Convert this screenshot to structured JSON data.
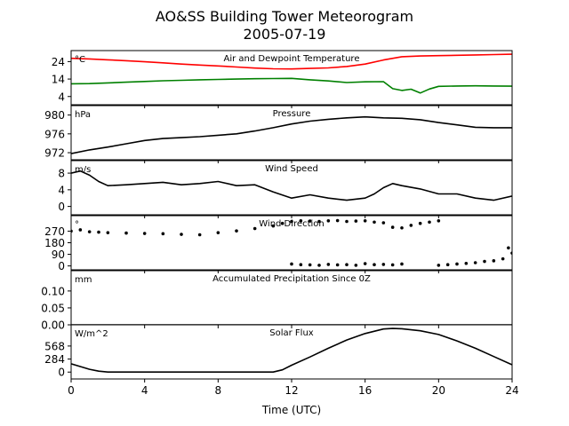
{
  "figure": {
    "title_line1": "AO&SS Building Tower Meteorogram",
    "title_line2": "2005-07-19",
    "xlabel": "Time (UTC)"
  },
  "x_axis": {
    "range": [
      0,
      24
    ],
    "ticks": [
      0,
      4,
      8,
      12,
      16,
      20,
      24
    ],
    "tick_labels": [
      "0",
      "4",
      "8",
      "12",
      "16",
      "20",
      "24"
    ]
  },
  "chart_data": [
    {
      "type": "line",
      "title": "Air and Dewpoint Temperature",
      "unit": "°C",
      "ylim": [
        -0.7,
        30.3
      ],
      "yticks": [
        4,
        14,
        24
      ],
      "ytick_labels": [
        "4",
        "14",
        "24"
      ],
      "series": [
        {
          "color": "#ff0000",
          "x": [
            0,
            1,
            2,
            3,
            4,
            5,
            6,
            7,
            8,
            9,
            10,
            11,
            12,
            13,
            14,
            15,
            16,
            17,
            18,
            19,
            20,
            21,
            22,
            23,
            24
          ],
          "y": [
            25.9,
            25.5,
            25,
            24.5,
            23.9,
            23.3,
            22.6,
            22,
            21.5,
            20.9,
            20.3,
            19.9,
            19.8,
            20.1,
            20.4,
            21.2,
            22.6,
            24.9,
            26.8,
            27.2,
            27.4,
            27.6,
            27.8,
            28,
            28.2
          ]
        },
        {
          "color": "#008000",
          "x": [
            0,
            1,
            2,
            3,
            4,
            5,
            6,
            7,
            8,
            9,
            10,
            11,
            12,
            13,
            14,
            15,
            16,
            17,
            17.5,
            18,
            18.5,
            19,
            19.5,
            20,
            21,
            22,
            23,
            24
          ],
          "y": [
            11.3,
            11.4,
            11.8,
            12.2,
            12.6,
            13,
            13.3,
            13.6,
            13.8,
            14,
            14.2,
            14.3,
            14.4,
            13.6,
            12.9,
            12,
            12.4,
            12.5,
            8.5,
            7.5,
            8.2,
            6,
            8.3,
            9.8,
            10,
            10.1,
            10,
            9.9
          ]
        }
      ]
    },
    {
      "type": "line",
      "title": "Pressure",
      "unit": "hPa",
      "ylim": [
        970.5,
        982
      ],
      "yticks": [
        972,
        976,
        980
      ],
      "ytick_labels": [
        "972",
        "976",
        "980"
      ],
      "series": [
        {
          "color": "#000000",
          "x": [
            0,
            1,
            2,
            3,
            4,
            5,
            6,
            7,
            8,
            9,
            10,
            11,
            12,
            13,
            14,
            15,
            16,
            17,
            18,
            19,
            20,
            21,
            22,
            23,
            24
          ],
          "y": [
            971.8,
            972.6,
            973.2,
            973.9,
            974.6,
            975,
            975.2,
            975.4,
            975.7,
            976,
            976.6,
            977.3,
            978.1,
            978.7,
            979.1,
            979.4,
            979.6,
            979.4,
            979.3,
            979,
            978.4,
            977.9,
            977.4,
            977.3,
            977.3
          ]
        }
      ]
    },
    {
      "type": "line",
      "title": "Wind Speed",
      "unit": "m/s",
      "ylim": [
        -2,
        11
      ],
      "yticks": [
        0,
        4,
        8
      ],
      "ytick_labels": [
        "0",
        "4",
        "8"
      ],
      "series": [
        {
          "color": "#000000",
          "x": [
            0,
            0.5,
            1,
            1.5,
            2,
            3,
            4,
            5,
            6,
            7,
            8,
            9,
            10,
            11,
            12,
            13,
            14,
            15,
            16,
            16.5,
            17,
            17.5,
            18,
            19,
            20,
            21,
            22,
            23,
            24
          ],
          "y": [
            8,
            8.5,
            7.5,
            6,
            5,
            5.2,
            5.5,
            5.8,
            5.2,
            5.5,
            6,
            5,
            5.2,
            3.5,
            2,
            2.8,
            2,
            1.5,
            2,
            3,
            4.5,
            5.5,
            5,
            4.2,
            3,
            3,
            2,
            1.5,
            2.5
          ]
        }
      ]
    },
    {
      "type": "scatter",
      "title": "Wind Direction",
      "unit": "°",
      "ylim": [
        -30,
        390
      ],
      "yticks": [
        0,
        90,
        180,
        270
      ],
      "ytick_labels": [
        "0",
        "90",
        "180",
        "270"
      ],
      "series": [
        {
          "color": "#000000",
          "x": [
            0,
            0.5,
            1,
            1.5,
            2,
            3,
            4,
            5,
            6,
            7,
            8,
            9,
            10,
            11,
            11.5,
            12,
            12.5,
            13,
            13.5,
            14,
            14.5,
            15,
            15.5,
            16,
            16.5,
            17,
            17.5,
            18,
            18.5,
            19,
            19.5,
            20
          ],
          "y": [
            270,
            280,
            265,
            262,
            258,
            255,
            252,
            250,
            245,
            242,
            258,
            272,
            290,
            310,
            330,
            345,
            350,
            348,
            345,
            350,
            352,
            345,
            348,
            350,
            340,
            335,
            300,
            295,
            315,
            330,
            340,
            350
          ]
        },
        {
          "color": "#000000",
          "x": [
            12,
            12.5,
            13,
            13.5,
            14,
            14.5,
            15,
            15.5,
            16,
            16.5,
            17,
            17.5,
            18,
            20,
            20.5,
            21,
            21.5,
            22,
            22.5,
            23,
            23.5,
            23.8,
            24
          ],
          "y": [
            15,
            10,
            8,
            5,
            12,
            8,
            10,
            5,
            18,
            10,
            12,
            8,
            15,
            5,
            10,
            15,
            20,
            25,
            35,
            40,
            55,
            140,
            100
          ]
        }
      ]
    },
    {
      "type": "line",
      "title": "Accumulated Precipitation Since 0Z",
      "unit": "mm",
      "ylim": [
        0,
        0.16
      ],
      "yticks": [
        0,
        0.05,
        0.1
      ],
      "ytick_labels": [
        "0.00",
        "0.05",
        "0.10"
      ],
      "series": [
        {
          "color": "#000000",
          "x": [
            0,
            24
          ],
          "y": [
            0,
            0
          ]
        }
      ]
    },
    {
      "type": "line",
      "title": "Solar Flux",
      "unit": "W/m^2",
      "ylim": [
        -150,
        1030
      ],
      "yticks": [
        0,
        284,
        568
      ],
      "ytick_labels": [
        "0",
        "284",
        "568"
      ],
      "series": [
        {
          "color": "#000000",
          "x": [
            0,
            0.5,
            1,
            1.5,
            2,
            4,
            6,
            8,
            10,
            11,
            11.5,
            12,
            13,
            14,
            15,
            16,
            17,
            17.5,
            18,
            19,
            20,
            21,
            22,
            23,
            24
          ],
          "y": [
            180,
            120,
            60,
            20,
            0,
            0,
            0,
            0,
            0,
            0,
            50,
            150,
            330,
            520,
            700,
            840,
            940,
            950,
            945,
            900,
            820,
            680,
            520,
            340,
            160
          ]
        }
      ]
    }
  ]
}
